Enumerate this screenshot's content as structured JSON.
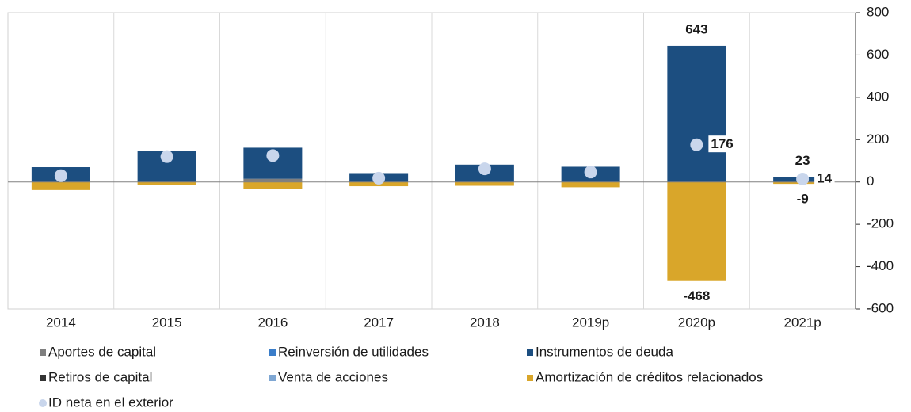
{
  "chart_data": {
    "type": "bar",
    "stacked": true,
    "categories": [
      "2014",
      "2015",
      "2016",
      "2017",
      "2018",
      "2019p",
      "2020p",
      "2021p"
    ],
    "series": [
      {
        "name": "Aportes de capital",
        "type": "bar",
        "color": "#7f7f7f",
        "values": [
          0,
          0,
          15,
          0,
          0,
          0,
          0,
          0
        ],
        "labels": [
          false,
          false,
          false,
          false,
          false,
          false,
          false,
          false
        ]
      },
      {
        "name": "Reinversión de utilidades",
        "type": "bar",
        "color": "#3a7dc9",
        "values": [
          0,
          0,
          0,
          0,
          0,
          0,
          0,
          0
        ],
        "labels": [
          false,
          false,
          false,
          false,
          false,
          false,
          false,
          false
        ]
      },
      {
        "name": "Instrumentos de deuda",
        "type": "bar",
        "color": "#1c4e80",
        "values": [
          70,
          145,
          147,
          42,
          82,
          72,
          643,
          23
        ],
        "labels": [
          false,
          false,
          false,
          false,
          false,
          false,
          true,
          true
        ]
      },
      {
        "name": "Retiros de capital",
        "type": "bar",
        "color": "#333333",
        "values": [
          0,
          0,
          0,
          0,
          0,
          0,
          0,
          0
        ],
        "labels": [
          false,
          false,
          false,
          false,
          false,
          false,
          false,
          false
        ]
      },
      {
        "name": "Venta de acciones",
        "type": "bar",
        "color": "#7fa7d3",
        "values": [
          0,
          0,
          0,
          0,
          0,
          0,
          0,
          0
        ],
        "labels": [
          false,
          false,
          false,
          false,
          false,
          false,
          false,
          false
        ]
      },
      {
        "name": "Amortización de créditos relacionados",
        "type": "bar",
        "color": "#d9a62a",
        "values": [
          -38,
          -15,
          -33,
          -20,
          -18,
          -25,
          -468,
          -9
        ],
        "labels": [
          false,
          false,
          false,
          false,
          false,
          false,
          true,
          true
        ]
      },
      {
        "name": "ID neta en el exterior",
        "type": "scatter",
        "color": "#c9d6ec",
        "values": [
          30,
          120,
          125,
          18,
          62,
          47,
          176,
          14
        ],
        "labels": [
          false,
          false,
          false,
          false,
          false,
          false,
          true,
          true
        ]
      }
    ],
    "ylim": [
      -600,
      800
    ],
    "yticks": [
      -600,
      -400,
      -200,
      0,
      200,
      400,
      600,
      800
    ],
    "y_axis_side": "right",
    "grid": true
  }
}
